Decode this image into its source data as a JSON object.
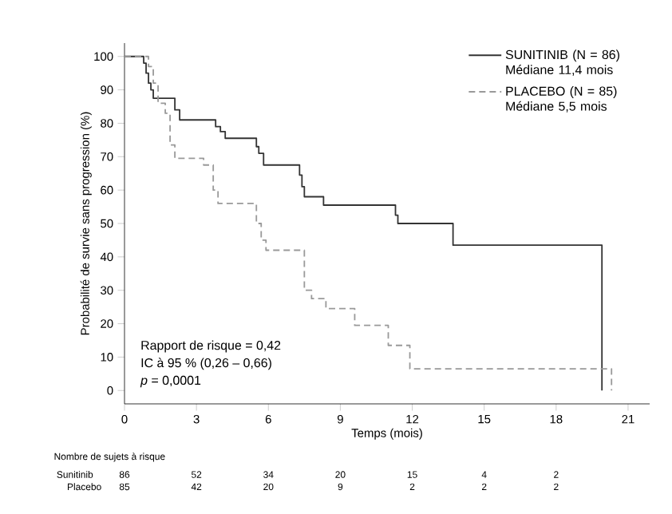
{
  "chart_data": {
    "type": "step",
    "xlabel": "Temps (mois)",
    "ylabel": "Probabilité de survie sans progression (%)",
    "xlim": [
      0,
      21.9
    ],
    "ylim": [
      -4,
      104
    ],
    "xticks": [
      0,
      3,
      6,
      9,
      12,
      15,
      18,
      21
    ],
    "yticks": [
      0,
      10,
      20,
      30,
      40,
      50,
      60,
      70,
      80,
      90,
      100
    ],
    "legend": "top right",
    "grid": false,
    "marker": "none",
    "series": [
      {
        "name": "SUNITINIB (N = 86) Médiane 11,4 mois",
        "color": "#333333",
        "line_style": "solid",
        "x": [
          0,
          0.6,
          0.8,
          0.9,
          1.0,
          1.1,
          1.2,
          2.0,
          2.1,
          2.3,
          3.7,
          3.8,
          4.0,
          4.2,
          5.4,
          5.5,
          5.6,
          5.8,
          7.2,
          7.3,
          7.4,
          7.5,
          8.3,
          11.2,
          11.3,
          11.4,
          13.7,
          19.9,
          19.91
        ],
        "values": [
          100,
          100,
          98,
          95,
          92,
          90,
          87.5,
          87.5,
          84,
          81,
          81,
          79,
          77.5,
          75.5,
          75.5,
          73,
          71,
          67.5,
          67.5,
          64.5,
          61,
          58,
          55.5,
          55.5,
          52.5,
          50,
          43.5,
          43.5,
          0
        ]
      },
      {
        "name": "PLACEBO (N = 85) Médiane 5,5 mois",
        "color": "#999999",
        "line_style": "dashed",
        "x": [
          0,
          0.9,
          1.0,
          1.2,
          1.4,
          1.7,
          1.9,
          2.1,
          3.3,
          3.7,
          3.9,
          5.4,
          5.5,
          5.7,
          5.9,
          7.3,
          7.5,
          7.8,
          8.4,
          9.6,
          10.8,
          11.0,
          11.6,
          11.9,
          20.3,
          20.31
        ],
        "values": [
          100,
          100,
          97,
          92,
          86,
          83,
          73.5,
          69.5,
          67.5,
          60,
          56,
          56,
          50,
          45,
          42,
          42,
          30,
          27.5,
          24.5,
          19.5,
          19.5,
          13.5,
          13.5,
          6.5,
          6.5,
          0
        ]
      }
    ],
    "annotations": [
      "Rapport de risque = 0,42",
      "IC à 95 % (0,26 – 0,66)",
      "*p* = 0,0001",
      "Nombre de sujets à risque",
      "Sunitinib",
      "86",
      "52",
      "34",
      "20",
      "15",
      "4",
      "2",
      "Placebo",
      "85",
      "42",
      "20",
      "9",
      "2",
      "2",
      "2"
    ]
  }
}
